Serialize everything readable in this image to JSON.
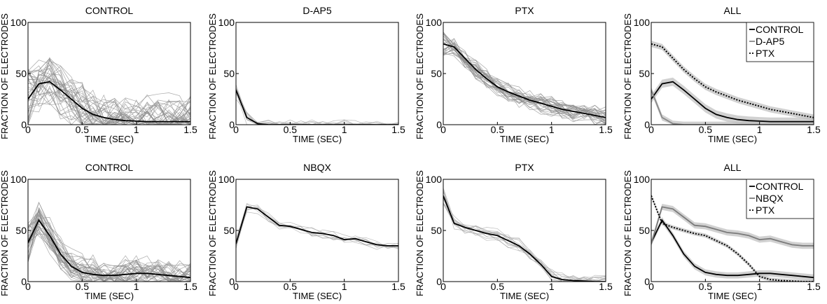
{
  "chart_data": [
    {
      "type": "line",
      "title": "CONTROL",
      "xlabel": "TIME (SEC)",
      "ylabel": "FRACTION OF ELECTRODES",
      "xlim": [
        0,
        1.5
      ],
      "ylim": [
        0,
        100
      ],
      "xticks": [
        "0",
        "0.5",
        "1",
        "1.5"
      ],
      "yticks": [
        "0",
        "50",
        "100"
      ],
      "trials": {
        "count": 40,
        "color": "#8c8c8c",
        "spread": 24,
        "seed": 11
      },
      "series": [
        {
          "style": "solid",
          "color": "#000000",
          "x": [
            0,
            0.1,
            0.2,
            0.3,
            0.4,
            0.5,
            0.6,
            0.7,
            0.8,
            0.9,
            1.0,
            1.1,
            1.2,
            1.3,
            1.4,
            1.5
          ],
          "y": [
            25,
            40,
            42,
            34,
            25,
            16,
            10,
            7,
            5,
            4,
            3.5,
            3,
            3,
            3,
            3,
            3
          ]
        }
      ]
    },
    {
      "type": "line",
      "title": "D-AP5",
      "xlabel": "TIME (SEC)",
      "ylabel": "FRACTION OF ELECTRODES",
      "xlim": [
        0,
        1.5
      ],
      "ylim": [
        0,
        100
      ],
      "xticks": [
        "0",
        "0.5",
        "1",
        "1.5"
      ],
      "yticks": [
        "0",
        "50",
        "100"
      ],
      "trials": {
        "count": 10,
        "color": "#a6a6a6",
        "spread": 8,
        "seed": 23
      },
      "series": [
        {
          "style": "solid",
          "color": "#000000",
          "x": [
            0,
            0.1,
            0.2,
            0.3,
            0.4,
            0.5,
            0.6,
            0.7,
            0.8,
            0.9,
            1.0,
            1.1,
            1.2,
            1.3,
            1.4,
            1.5
          ],
          "y": [
            34,
            7,
            1,
            0,
            0,
            0,
            0,
            0,
            0,
            0,
            0,
            0,
            0,
            0,
            0,
            0
          ]
        }
      ]
    },
    {
      "type": "line",
      "title": "PTX",
      "xlabel": "TIME (SEC)",
      "ylabel": "FRACTION OF ELECTRODES",
      "xlim": [
        0,
        1.5
      ],
      "ylim": [
        0,
        100
      ],
      "xticks": [
        "0",
        "0.5",
        "1",
        "1.5"
      ],
      "yticks": [
        "0",
        "50",
        "100"
      ],
      "trials": {
        "count": 30,
        "color": "#8c8c8c",
        "spread": 10,
        "seed": 37
      },
      "series": [
        {
          "style": "solid",
          "color": "#000000",
          "x": [
            0,
            0.1,
            0.2,
            0.3,
            0.4,
            0.5,
            0.6,
            0.7,
            0.8,
            0.9,
            1.0,
            1.1,
            1.2,
            1.3,
            1.4,
            1.5
          ],
          "y": [
            79,
            76,
            65,
            54,
            45,
            37,
            32,
            28,
            24,
            21,
            18,
            15,
            13,
            11,
            9,
            7
          ]
        }
      ]
    },
    {
      "type": "line",
      "title": "ALL",
      "xlabel": "TIME (SEC)",
      "ylabel": "FRACTION OF ELECTRODES",
      "xlim": [
        0,
        1.5
      ],
      "ylim": [
        0,
        100
      ],
      "xticks": [
        "0",
        "0.5",
        "1",
        "1.5"
      ],
      "yticks": [
        "0",
        "50",
        "100"
      ],
      "legend": "top-right",
      "series": [
        {
          "name": "CONTROL",
          "style": "solid",
          "color": "#000000",
          "band": 4,
          "x": [
            0,
            0.1,
            0.2,
            0.3,
            0.4,
            0.5,
            0.6,
            0.7,
            0.8,
            0.9,
            1.0,
            1.1,
            1.2,
            1.3,
            1.4,
            1.5
          ],
          "y": [
            25,
            40,
            42,
            34,
            25,
            16,
            10,
            7,
            5,
            4,
            3.5,
            3,
            3,
            3,
            3,
            3
          ]
        },
        {
          "name": "D-AP5",
          "style": "solid",
          "color": "#888888",
          "band": 3,
          "x": [
            0,
            0.1,
            0.2,
            0.3,
            0.4,
            0.5,
            0.6,
            0.7,
            0.8,
            0.9,
            1.0,
            1.1,
            1.2,
            1.3,
            1.4,
            1.5
          ],
          "y": [
            34,
            7,
            1,
            0,
            0,
            0,
            0,
            0,
            0,
            0,
            0,
            0,
            0,
            0,
            0,
            0
          ]
        },
        {
          "name": "PTX",
          "style": "dotted",
          "color": "#000000",
          "band": 3,
          "x": [
            0,
            0.1,
            0.2,
            0.3,
            0.4,
            0.5,
            0.6,
            0.7,
            0.8,
            0.9,
            1.0,
            1.1,
            1.2,
            1.3,
            1.4,
            1.5
          ],
          "y": [
            79,
            76,
            65,
            54,
            45,
            37,
            32,
            28,
            24,
            21,
            18,
            15,
            13,
            11,
            9,
            7
          ]
        }
      ]
    },
    {
      "type": "line",
      "title": "CONTROL",
      "xlabel": "TIME (SEC)",
      "ylabel": "FRACTION OF ELECTRODES",
      "xlim": [
        0,
        1.5
      ],
      "ylim": [
        0,
        100
      ],
      "xticks": [
        "0",
        "0.5",
        "1",
        "1.5"
      ],
      "yticks": [
        "0",
        "50",
        "100"
      ],
      "trials": {
        "count": 36,
        "color": "#8c8c8c",
        "spread": 16,
        "seed": 53
      },
      "series": [
        {
          "style": "solid",
          "color": "#000000",
          "x": [
            0,
            0.1,
            0.2,
            0.3,
            0.4,
            0.5,
            0.6,
            0.7,
            0.8,
            0.9,
            1.0,
            1.1,
            1.2,
            1.3,
            1.4,
            1.5
          ],
          "y": [
            38,
            60,
            45,
            27,
            15,
            9,
            7,
            6,
            6,
            7,
            8,
            8,
            7,
            6,
            5,
            4
          ]
        }
      ]
    },
    {
      "type": "line",
      "title": "NBQX",
      "xlabel": "TIME (SEC)",
      "ylabel": "FRACTION OF ELECTRODES",
      "xlim": [
        0,
        1.5
      ],
      "ylim": [
        0,
        100
      ],
      "xticks": [
        "0",
        "0.5",
        "1",
        "1.5"
      ],
      "yticks": [
        "0",
        "50",
        "100"
      ],
      "trials": {
        "count": 8,
        "color": "#a6a6a6",
        "spread": 5,
        "seed": 71
      },
      "series": [
        {
          "style": "solid",
          "color": "#000000",
          "x": [
            0,
            0.1,
            0.2,
            0.3,
            0.4,
            0.5,
            0.6,
            0.7,
            0.8,
            0.9,
            1.0,
            1.1,
            1.2,
            1.3,
            1.4,
            1.5
          ],
          "y": [
            37,
            73,
            71,
            63,
            55,
            54,
            51,
            48,
            47,
            45,
            41,
            42,
            39,
            36,
            35,
            35
          ]
        }
      ]
    },
    {
      "type": "line",
      "title": "PTX",
      "xlabel": "TIME (SEC)",
      "ylabel": "FRACTION OF ELECTRODES",
      "xlim": [
        0,
        1.5
      ],
      "ylim": [
        0,
        100
      ],
      "xticks": [
        "0",
        "0.5",
        "1",
        "1.5"
      ],
      "yticks": [
        "0",
        "50",
        "100"
      ],
      "trials": {
        "count": 14,
        "color": "#a6a6a6",
        "spread": 7,
        "seed": 89
      },
      "series": [
        {
          "style": "solid",
          "color": "#000000",
          "x": [
            0,
            0.1,
            0.2,
            0.3,
            0.4,
            0.5,
            0.6,
            0.7,
            0.8,
            0.9,
            1.0,
            1.1,
            1.2,
            1.3,
            1.4,
            1.5
          ],
          "y": [
            84,
            57,
            53,
            50,
            47,
            45,
            40,
            35,
            27,
            17,
            5,
            2,
            1,
            0.5,
            0,
            0
          ]
        }
      ]
    },
    {
      "type": "line",
      "title": "ALL",
      "xlabel": "TIME (SEC)",
      "ylabel": "FRACTION OF ELECTRODES",
      "xlim": [
        0,
        1.5
      ],
      "ylim": [
        0,
        100
      ],
      "xticks": [
        "0",
        "0.5",
        "1",
        "1.5"
      ],
      "yticks": [
        "0",
        "50",
        "100"
      ],
      "legend": "top-right",
      "series": [
        {
          "name": "CONTROL",
          "style": "solid",
          "color": "#000000",
          "band": 3,
          "x": [
            0,
            0.1,
            0.2,
            0.3,
            0.4,
            0.5,
            0.6,
            0.7,
            0.8,
            0.9,
            1.0,
            1.1,
            1.2,
            1.3,
            1.4,
            1.5
          ],
          "y": [
            38,
            60,
            45,
            27,
            15,
            9,
            7,
            6,
            6,
            7,
            8,
            8,
            7,
            6,
            5,
            4
          ]
        },
        {
          "name": "NBQX",
          "style": "solid",
          "color": "#7a7a7a",
          "band": 3,
          "x": [
            0,
            0.1,
            0.2,
            0.3,
            0.4,
            0.5,
            0.6,
            0.7,
            0.8,
            0.9,
            1.0,
            1.1,
            1.2,
            1.3,
            1.4,
            1.5
          ],
          "y": [
            37,
            73,
            71,
            63,
            55,
            54,
            51,
            48,
            47,
            45,
            41,
            42,
            39,
            36,
            35,
            35
          ]
        },
        {
          "name": "PTX",
          "style": "dotted",
          "color": "#000000",
          "band": 2,
          "x": [
            0,
            0.1,
            0.2,
            0.3,
            0.4,
            0.5,
            0.6,
            0.7,
            0.8,
            0.9,
            1.0,
            1.1,
            1.2,
            1.3,
            1.4,
            1.5
          ],
          "y": [
            84,
            57,
            53,
            50,
            47,
            45,
            40,
            35,
            27,
            17,
            5,
            2,
            1,
            0.5,
            0,
            0
          ]
        }
      ]
    }
  ]
}
